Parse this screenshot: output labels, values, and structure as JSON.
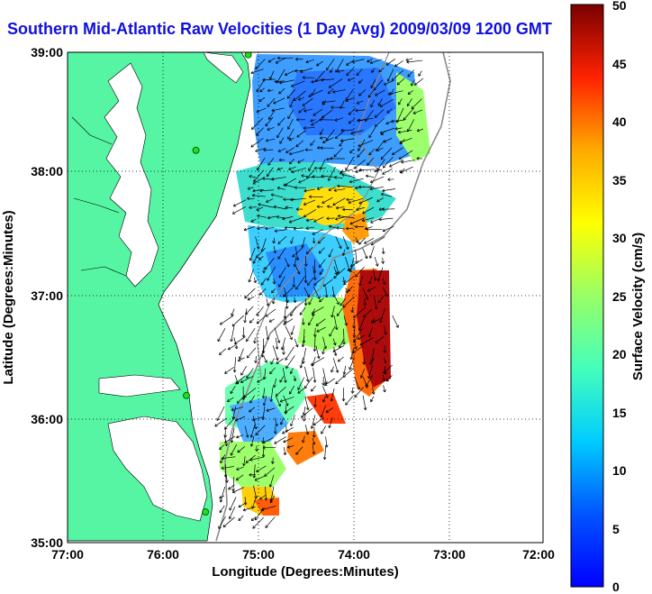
{
  "title": "Southern Mid-Atlantic Raw Velocities (1 Day Avg) 2009/03/09 1200 GMT",
  "map": {
    "x_ticks": [
      "77:00",
      "76:00",
      "75:00",
      "74:00",
      "73:00",
      "72:00"
    ],
    "y_ticks": [
      "39:00",
      "38:00",
      "37:00",
      "36:00",
      "35:00"
    ],
    "xlabel": "Longitude (Degrees:Minutes)",
    "ylabel": "Latitude (Degrees:Minutes)",
    "lon_range": [
      -77,
      -72
    ],
    "lat_range": [
      35,
      39
    ],
    "grid": "dotted",
    "land_color": "#55f5a4",
    "water_color": "#ffffff"
  },
  "colorbar": {
    "label": "Surface Velocity (cm/s)",
    "ticks": [
      "50",
      "45",
      "40",
      "35",
      "30",
      "25",
      "20",
      "15",
      "10",
      "5",
      "0"
    ],
    "min": 0,
    "max": 50
  },
  "chart_data": {
    "type": "heatmap",
    "title": "Southern Mid-Atlantic Raw Velocities (1 Day Avg) 2009/03/09 1200 GMT",
    "xlabel": "Longitude (Degrees:Minutes)",
    "ylabel": "Latitude (Degrees:Minutes)",
    "colorbar_label": "Surface Velocity (cm/s)",
    "xlim": [
      -77,
      -72
    ],
    "ylim": [
      35,
      39
    ],
    "clim": [
      0,
      50
    ],
    "regions": [
      {
        "lon": -74.6,
        "lat": 38.5,
        "speed": 8
      },
      {
        "lon": -74.1,
        "lat": 38.6,
        "speed": 6
      },
      {
        "lon": -74.3,
        "lat": 37.9,
        "speed": 25
      },
      {
        "lon": -73.8,
        "lat": 37.9,
        "speed": 32
      },
      {
        "lon": -74.5,
        "lat": 37.1,
        "speed": 10
      },
      {
        "lon": -73.8,
        "lat": 36.7,
        "speed": 48
      },
      {
        "lon": -74.6,
        "lat": 36.4,
        "speed": 15
      },
      {
        "lon": -74.3,
        "lat": 36.2,
        "speed": 40
      },
      {
        "lon": -75.2,
        "lat": 35.5,
        "speed": 30
      }
    ],
    "sites": [
      {
        "lon": -75.1,
        "lat": 38.98
      },
      {
        "lon": -75.65,
        "lat": 38.2
      },
      {
        "lon": -75.75,
        "lat": 36.2
      },
      {
        "lon": -75.55,
        "lat": 35.25
      }
    ]
  }
}
